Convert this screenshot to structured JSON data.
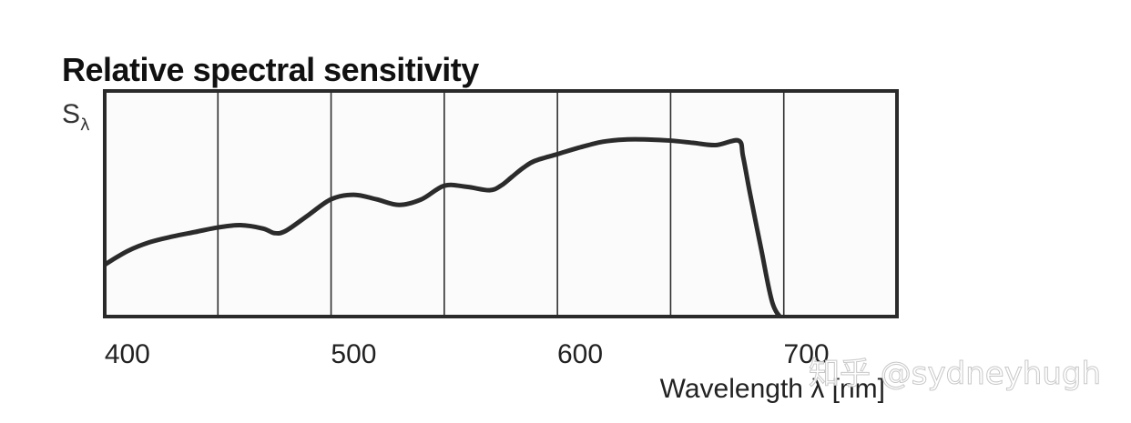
{
  "chart_data": {
    "type": "line",
    "title": "Relative spectral sensitivity",
    "ylabel": "S",
    "ylabel_subscript": "λ",
    "xlabel": "Wavelength λ [nm]",
    "xlim": [
      390,
      740
    ],
    "ylim": [
      0,
      1
    ],
    "grid": true,
    "x_ticks": [
      400,
      500,
      600,
      700
    ],
    "x_tick_labels": [
      "400",
      "500",
      "600",
      "700"
    ],
    "gridlines_x": [
      440,
      490,
      540,
      590,
      640,
      690
    ],
    "series": [
      {
        "name": "Relative spectral sensitivity",
        "x": [
          390,
          400,
          410,
          420,
          430,
          440,
          450,
          460,
          465,
          470,
          480,
          490,
          500,
          510,
          520,
          530,
          540,
          550,
          560,
          565,
          570,
          575,
          580,
          590,
          600,
          610,
          620,
          630,
          640,
          650,
          660,
          670,
          672,
          675,
          680,
          685,
          690
        ],
        "values": [
          0.23,
          0.29,
          0.33,
          0.355,
          0.375,
          0.395,
          0.405,
          0.39,
          0.37,
          0.38,
          0.45,
          0.52,
          0.54,
          0.52,
          0.495,
          0.52,
          0.58,
          0.575,
          0.56,
          0.58,
          0.62,
          0.66,
          0.69,
          0.72,
          0.75,
          0.775,
          0.785,
          0.785,
          0.78,
          0.77,
          0.76,
          0.78,
          0.71,
          0.55,
          0.3,
          0.06,
          -0.02
        ]
      }
    ]
  },
  "watermark": "知乎 @sydneyhugh"
}
